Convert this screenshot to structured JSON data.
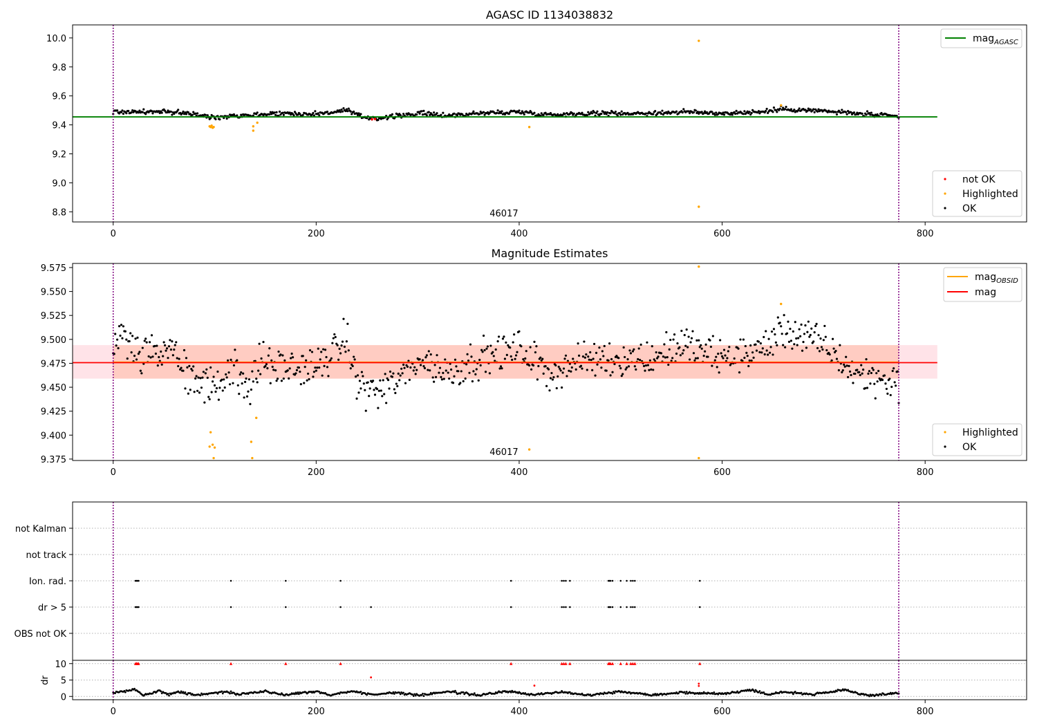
{
  "chart_data": [
    {
      "type": "scatter",
      "title": "AGASC ID 1134038832",
      "xlim": [
        -40,
        900
      ],
      "ylim": [
        8.73,
        10.09
      ],
      "xticks": [
        0,
        200,
        400,
        600,
        800
      ],
      "yticks": [
        8.8,
        9.0,
        9.2,
        9.4,
        9.6,
        9.8,
        10.0
      ],
      "ytick_labels": [
        "8.8",
        "9.0",
        "9.2",
        "9.4",
        "9.6",
        "9.8",
        "10.0"
      ],
      "annotation": "46017",
      "annotation_x": 385,
      "obs_bounds": [
        0,
        774
      ],
      "reference_lines": [
        {
          "name": "mag_AGASC",
          "label": "mag",
          "sub": "AGASC",
          "y": 9.455,
          "x": [
            -40,
            812
          ],
          "color": "#008000"
        }
      ],
      "legend_top": [
        {
          "label": "mag",
          "sub": "AGASC",
          "kind": "line",
          "color": "#008000"
        }
      ],
      "legend_bottom": [
        {
          "label": "not OK",
          "kind": "dot",
          "color": "#ff0000"
        },
        {
          "label": "Highlighted",
          "kind": "dot",
          "color": "#ffa500"
        },
        {
          "label": "OK",
          "kind": "dot",
          "color": "#000000"
        }
      ],
      "ok_trend": [
        [
          0,
          9.49
        ],
        [
          40,
          9.49
        ],
        [
          70,
          9.485
        ],
        [
          85,
          9.465
        ],
        [
          100,
          9.45
        ],
        [
          115,
          9.465
        ],
        [
          140,
          9.47
        ],
        [
          160,
          9.48
        ],
        [
          200,
          9.475
        ],
        [
          230,
          9.5
        ],
        [
          245,
          9.455
        ],
        [
          260,
          9.445
        ],
        [
          285,
          9.465
        ],
        [
          300,
          9.48
        ],
        [
          330,
          9.465
        ],
        [
          360,
          9.48
        ],
        [
          400,
          9.49
        ],
        [
          430,
          9.47
        ],
        [
          470,
          9.48
        ],
        [
          530,
          9.48
        ],
        [
          560,
          9.49
        ],
        [
          600,
          9.48
        ],
        [
          640,
          9.49
        ],
        [
          660,
          9.51
        ],
        [
          700,
          9.495
        ],
        [
          730,
          9.48
        ],
        [
          774,
          9.455
        ]
      ],
      "ok_noise": 0.012,
      "highlighted": [
        [
          95,
          9.39
        ],
        [
          96,
          9.385
        ],
        [
          97,
          9.395
        ],
        [
          98,
          9.38
        ],
        [
          99,
          9.385
        ],
        [
          138,
          9.39
        ],
        [
          138,
          9.36
        ],
        [
          142,
          9.415
        ],
        [
          410,
          9.385
        ],
        [
          577,
          9.98
        ],
        [
          577,
          8.835
        ],
        [
          658,
          9.535
        ]
      ],
      "not_ok": [
        [
          255,
          9.438
        ],
        [
          258,
          9.44
        ]
      ]
    },
    {
      "type": "scatter",
      "title": "Magnitude Estimates",
      "xlim": [
        -40,
        900
      ],
      "ylim": [
        9.3735,
        9.5793
      ],
      "xticks": [
        0,
        200,
        400,
        600,
        800
      ],
      "yticks": [
        9.375,
        9.4,
        9.425,
        9.45,
        9.475,
        9.5,
        9.525,
        9.55,
        9.575
      ],
      "ytick_labels": [
        "9.375",
        "9.400",
        "9.425",
        "9.450",
        "9.475",
        "9.500",
        "9.525",
        "9.550",
        "9.575"
      ],
      "annotation": "46017",
      "annotation_x": 385,
      "obs_bounds": [
        0,
        774
      ],
      "bands": [
        {
          "x": [
            -40,
            812
          ],
          "y": [
            9.459,
            9.494
          ],
          "color": "#ffc0cb"
        },
        {
          "x": [
            0,
            774
          ],
          "y": [
            9.459,
            9.494
          ],
          "color": "#ffa07a"
        }
      ],
      "reference_lines": [
        {
          "name": "mag_OBSID",
          "label": "mag",
          "sub": "OBSID",
          "y": 9.4762,
          "x": [
            0,
            774
          ],
          "color": "#ffa500"
        },
        {
          "name": "mag",
          "label": "mag",
          "sub": "",
          "y": 9.4757,
          "x": [
            -40,
            812
          ],
          "color": "#ff0000"
        }
      ],
      "legend_top": [
        {
          "label": "mag",
          "sub": "OBSID",
          "kind": "line",
          "color": "#ffa500"
        },
        {
          "label": "mag",
          "sub": "",
          "kind": "line",
          "color": "#ff0000"
        }
      ],
      "legend_bottom": [
        {
          "label": "Highlighted",
          "kind": "dot",
          "color": "#ffa500"
        },
        {
          "label": "OK",
          "kind": "dot",
          "color": "#000000"
        }
      ],
      "ok_trend": [
        [
          0,
          9.49
        ],
        [
          10,
          9.5
        ],
        [
          20,
          9.49
        ],
        [
          40,
          9.485
        ],
        [
          60,
          9.485
        ],
        [
          75,
          9.46
        ],
        [
          90,
          9.455
        ],
        [
          100,
          9.45
        ],
        [
          110,
          9.46
        ],
        [
          125,
          9.47
        ],
        [
          135,
          9.445
        ],
        [
          145,
          9.48
        ],
        [
          160,
          9.47
        ],
        [
          200,
          9.47
        ],
        [
          230,
          9.5
        ],
        [
          240,
          9.455
        ],
        [
          260,
          9.445
        ],
        [
          285,
          9.46
        ],
        [
          300,
          9.48
        ],
        [
          330,
          9.465
        ],
        [
          360,
          9.48
        ],
        [
          400,
          9.49
        ],
        [
          430,
          9.465
        ],
        [
          470,
          9.48
        ],
        [
          530,
          9.48
        ],
        [
          560,
          9.495
        ],
        [
          600,
          9.48
        ],
        [
          640,
          9.49
        ],
        [
          660,
          9.51
        ],
        [
          700,
          9.495
        ],
        [
          730,
          9.465
        ],
        [
          774,
          9.455
        ]
      ],
      "ok_noise": 0.014,
      "highlighted": [
        [
          95,
          9.388
        ],
        [
          96,
          9.403
        ],
        [
          98,
          9.39
        ],
        [
          99,
          9.376
        ],
        [
          100,
          9.387
        ],
        [
          136,
          9.393
        ],
        [
          137,
          9.376
        ],
        [
          141,
          9.418
        ],
        [
          410,
          9.385
        ],
        [
          577,
          9.576
        ],
        [
          577,
          9.376
        ],
        [
          658,
          9.537
        ]
      ]
    },
    {
      "type": "scatter",
      "xlim": [
        -40,
        900
      ],
      "categories": [
        "not Kalman",
        "not track",
        "Ion. rad.",
        "dr > 5",
        "OBS not OK"
      ],
      "obs_bounds": [
        0,
        774
      ],
      "ion_rad_x": [
        22,
        23,
        24,
        25,
        116,
        170,
        224,
        392,
        442,
        444,
        446,
        450,
        488,
        489,
        490,
        492,
        500,
        506,
        510,
        512,
        514,
        578
      ],
      "dr_gt5_x": [
        22,
        23,
        24,
        25,
        116,
        170,
        224,
        254,
        392,
        442,
        444,
        446,
        450,
        488,
        489,
        490,
        492,
        500,
        506,
        510,
        512,
        514,
        578
      ]
    },
    {
      "type": "scatter",
      "ylabel": "dr",
      "xlim": [
        -40,
        900
      ],
      "ylim": [
        -1,
        11
      ],
      "xticks": [
        0,
        200,
        400,
        600,
        800
      ],
      "yticks": [
        0,
        5,
        10
      ],
      "obs_bounds": [
        0,
        774
      ],
      "clip_value": 10,
      "dr_trend": [
        [
          0,
          1.0
        ],
        [
          10,
          1.5
        ],
        [
          22,
          2.1
        ],
        [
          30,
          0.3
        ],
        [
          45,
          1.8
        ],
        [
          55,
          0.6
        ],
        [
          65,
          1.5
        ],
        [
          80,
          0.4
        ],
        [
          110,
          1.4
        ],
        [
          125,
          0.7
        ],
        [
          150,
          1.6
        ],
        [
          165,
          0.5
        ],
        [
          200,
          1.5
        ],
        [
          215,
          0.4
        ],
        [
          235,
          1.7
        ],
        [
          255,
          0.5
        ],
        [
          280,
          1.2
        ],
        [
          300,
          0.3
        ],
        [
          330,
          1.5
        ],
        [
          360,
          0.4
        ],
        [
          390,
          1.6
        ],
        [
          410,
          0.5
        ],
        [
          440,
          1.3
        ],
        [
          470,
          0.5
        ],
        [
          500,
          1.5
        ],
        [
          530,
          0.5
        ],
        [
          560,
          1.2
        ],
        [
          600,
          0.8
        ],
        [
          630,
          2.0
        ],
        [
          645,
          0.6
        ],
        [
          660,
          1.4
        ],
        [
          690,
          0.6
        ],
        [
          720,
          1.9
        ],
        [
          745,
          0.3
        ],
        [
          774,
          1.0
        ]
      ],
      "dr_noise": 0.25,
      "red_points": [
        [
          254,
          5.8
        ],
        [
          415,
          3.3
        ],
        [
          577,
          3.9
        ],
        [
          577,
          3.2
        ]
      ]
    }
  ]
}
